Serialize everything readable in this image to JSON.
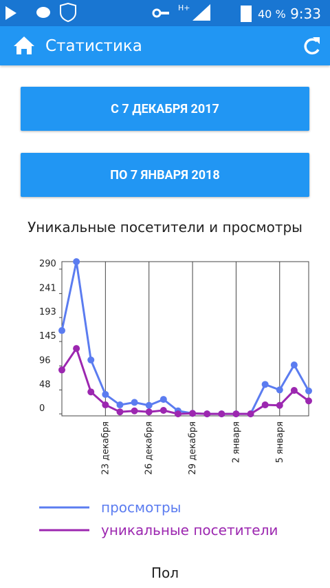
{
  "status_bar": {
    "network": "H+",
    "battery": "40 %",
    "time": "9:33"
  },
  "app_bar": {
    "title": "Статистика"
  },
  "buttons": [
    "С 7 ДЕКАБРЯ 2017",
    "ПО 7 ЯНВАРЯ 2018"
  ],
  "chart_data": {
    "type": "line",
    "title": "Уникальные посетители и просмотры",
    "categories": [
      null,
      null,
      null,
      "23 декабря",
      null,
      null,
      "26 декабря",
      null,
      null,
      "29 декабря",
      null,
      null,
      "2 января",
      null,
      null,
      "5 января",
      null,
      null
    ],
    "series": [
      {
        "name": "просмотры",
        "color": "#5b7cf0",
        "values": [
          167,
          305,
          108,
          39,
          18,
          23,
          17,
          29,
          6,
          1,
          0,
          0,
          0,
          0,
          59,
          48,
          98,
          46
        ]
      },
      {
        "name": "уникальные посетители",
        "color": "#9c27b0",
        "values": [
          88,
          131,
          44,
          18,
          4,
          6,
          4,
          7,
          0,
          1,
          0,
          0,
          0,
          0,
          18,
          17,
          47,
          26
        ]
      }
    ],
    "ylim": [
      -4,
      305
    ],
    "yticks": [
      0,
      48,
      96,
      145,
      193,
      241,
      290
    ],
    "grid": true,
    "legend": "bottom"
  },
  "section": {
    "title": "Пол"
  }
}
